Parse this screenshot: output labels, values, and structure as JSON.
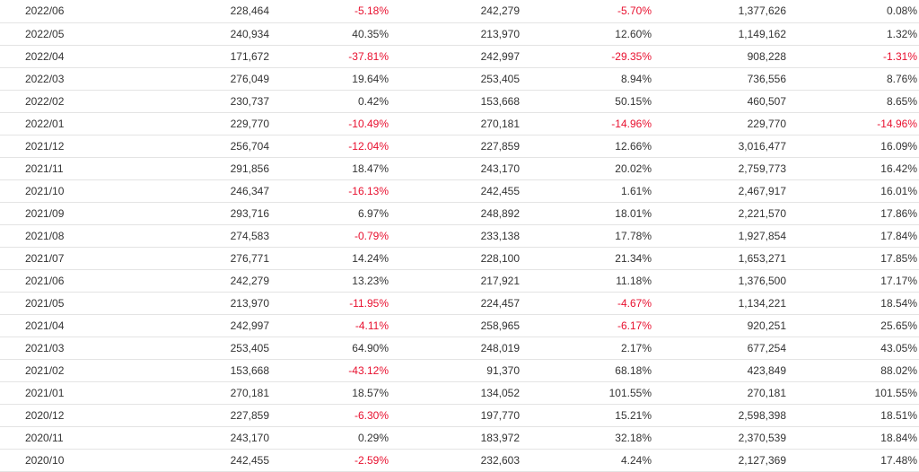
{
  "table": {
    "rows": [
      {
        "month": "2022/06",
        "c1": "228,464",
        "c2": "-5.18%",
        "c3": "242,279",
        "c4": "-5.70%",
        "c5": "1,377,626",
        "c6": "0.08%"
      },
      {
        "month": "2022/05",
        "c1": "240,934",
        "c2": "40.35%",
        "c3": "213,970",
        "c4": "12.60%",
        "c5": "1,149,162",
        "c6": "1.32%"
      },
      {
        "month": "2022/04",
        "c1": "171,672",
        "c2": "-37.81%",
        "c3": "242,997",
        "c4": "-29.35%",
        "c5": "908,228",
        "c6": "-1.31%"
      },
      {
        "month": "2022/03",
        "c1": "276,049",
        "c2": "19.64%",
        "c3": "253,405",
        "c4": "8.94%",
        "c5": "736,556",
        "c6": "8.76%"
      },
      {
        "month": "2022/02",
        "c1": "230,737",
        "c2": "0.42%",
        "c3": "153,668",
        "c4": "50.15%",
        "c5": "460,507",
        "c6": "8.65%"
      },
      {
        "month": "2022/01",
        "c1": "229,770",
        "c2": "-10.49%",
        "c3": "270,181",
        "c4": "-14.96%",
        "c5": "229,770",
        "c6": "-14.96%"
      },
      {
        "month": "2021/12",
        "c1": "256,704",
        "c2": "-12.04%",
        "c3": "227,859",
        "c4": "12.66%",
        "c5": "3,016,477",
        "c6": "16.09%"
      },
      {
        "month": "2021/11",
        "c1": "291,856",
        "c2": "18.47%",
        "c3": "243,170",
        "c4": "20.02%",
        "c5": "2,759,773",
        "c6": "16.42%"
      },
      {
        "month": "2021/10",
        "c1": "246,347",
        "c2": "-16.13%",
        "c3": "242,455",
        "c4": "1.61%",
        "c5": "2,467,917",
        "c6": "16.01%"
      },
      {
        "month": "2021/09",
        "c1": "293,716",
        "c2": "6.97%",
        "c3": "248,892",
        "c4": "18.01%",
        "c5": "2,221,570",
        "c6": "17.86%"
      },
      {
        "month": "2021/08",
        "c1": "274,583",
        "c2": "-0.79%",
        "c3": "233,138",
        "c4": "17.78%",
        "c5": "1,927,854",
        "c6": "17.84%"
      },
      {
        "month": "2021/07",
        "c1": "276,771",
        "c2": "14.24%",
        "c3": "228,100",
        "c4": "21.34%",
        "c5": "1,653,271",
        "c6": "17.85%"
      },
      {
        "month": "2021/06",
        "c1": "242,279",
        "c2": "13.23%",
        "c3": "217,921",
        "c4": "11.18%",
        "c5": "1,376,500",
        "c6": "17.17%"
      },
      {
        "month": "2021/05",
        "c1": "213,970",
        "c2": "-11.95%",
        "c3": "224,457",
        "c4": "-4.67%",
        "c5": "1,134,221",
        "c6": "18.54%"
      },
      {
        "month": "2021/04",
        "c1": "242,997",
        "c2": "-4.11%",
        "c3": "258,965",
        "c4": "-6.17%",
        "c5": "920,251",
        "c6": "25.65%"
      },
      {
        "month": "2021/03",
        "c1": "253,405",
        "c2": "64.90%",
        "c3": "248,019",
        "c4": "2.17%",
        "c5": "677,254",
        "c6": "43.05%"
      },
      {
        "month": "2021/02",
        "c1": "153,668",
        "c2": "-43.12%",
        "c3": "91,370",
        "c4": "68.18%",
        "c5": "423,849",
        "c6": "88.02%"
      },
      {
        "month": "2021/01",
        "c1": "270,181",
        "c2": "18.57%",
        "c3": "134,052",
        "c4": "101.55%",
        "c5": "270,181",
        "c6": "101.55%"
      },
      {
        "month": "2020/12",
        "c1": "227,859",
        "c2": "-6.30%",
        "c3": "197,770",
        "c4": "15.21%",
        "c5": "2,598,398",
        "c6": "18.51%"
      },
      {
        "month": "2020/11",
        "c1": "243,170",
        "c2": "0.29%",
        "c3": "183,972",
        "c4": "32.18%",
        "c5": "2,370,539",
        "c6": "18.84%"
      },
      {
        "month": "2020/10",
        "c1": "242,455",
        "c2": "-2.59%",
        "c3": "232,603",
        "c4": "4.24%",
        "c5": "2,127,369",
        "c6": "17.48%"
      }
    ]
  },
  "colors": {
    "negative": "#e8102f",
    "text": "#333333",
    "divider": "#e4e4e4"
  }
}
